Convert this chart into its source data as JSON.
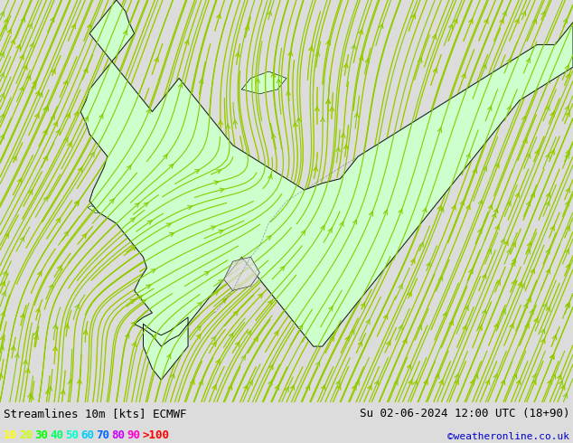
{
  "title_left": "Streamlines 10m [kts] ECMWF",
  "title_right": "Su 02-06-2024 12:00 UTC (18+90)",
  "credit": "©weatheronline.co.uk",
  "legend_values": [
    "10",
    "20",
    "30",
    "40",
    "50",
    "60",
    "70",
    "80",
    "90",
    ">100"
  ],
  "legend_colors": [
    "#ffff00",
    "#ccff00",
    "#00ff00",
    "#00ff66",
    "#00ffcc",
    "#00ccff",
    "#0066ff",
    "#cc00ff",
    "#ff00cc",
    "#ff0000"
  ],
  "bg_color": "#dcdcdc",
  "land_color": "#ccffcc",
  "sea_color": "#dcdcdc",
  "border_color": "#111111",
  "sea_stream_color": "#ffcc00",
  "land_stream_color": "#88cc00",
  "figsize": [
    6.34,
    4.9
  ],
  "dpi": 100,
  "bottom_bar_color": "#ffffff",
  "text_color": "#000000",
  "font_size_title": 9,
  "font_size_legend": 9,
  "font_size_credit": 8,
  "map_extent_lon": [
    0.0,
    32.0
  ],
  "map_extent_lat": [
    54.0,
    72.0
  ]
}
